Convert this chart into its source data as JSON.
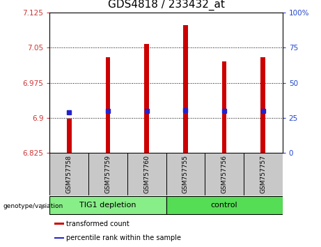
{
  "title": "GDS4818 / 233432_at",
  "samples": [
    "GSM757758",
    "GSM757759",
    "GSM757760",
    "GSM757755",
    "GSM757756",
    "GSM757757"
  ],
  "bar_tops": [
    6.898,
    7.03,
    7.057,
    7.098,
    7.02,
    7.03
  ],
  "bar_base": 6.825,
  "blue_markers": [
    6.912,
    6.915,
    6.915,
    6.916,
    6.915,
    6.915
  ],
  "bar_color": "#cc0000",
  "blue_color": "#2222cc",
  "ylim_left": [
    6.825,
    7.125
  ],
  "yticks_left": [
    6.825,
    6.9,
    6.975,
    7.05,
    7.125
  ],
  "ylim_right": [
    0,
    100
  ],
  "yticks_right": [
    0,
    25,
    50,
    75,
    100
  ],
  "ytick_labels_right": [
    "0",
    "25",
    "50",
    "75",
    "100%"
  ],
  "groups": [
    {
      "label": "TIG1 depletion",
      "indices": [
        0,
        1,
        2
      ],
      "color": "#88ee88"
    },
    {
      "label": "control",
      "indices": [
        3,
        4,
        5
      ],
      "color": "#55dd55"
    }
  ],
  "group_label_prefix": "genotype/variation",
  "legend_items": [
    {
      "color": "#cc0000",
      "label": "transformed count"
    },
    {
      "color": "#2222cc",
      "label": "percentile rank within the sample"
    }
  ],
  "bar_width": 0.12,
  "title_fontsize": 11,
  "tick_fontsize": 7.5,
  "sample_fontsize": 6.5,
  "group_fontsize": 8,
  "legend_fontsize": 7
}
